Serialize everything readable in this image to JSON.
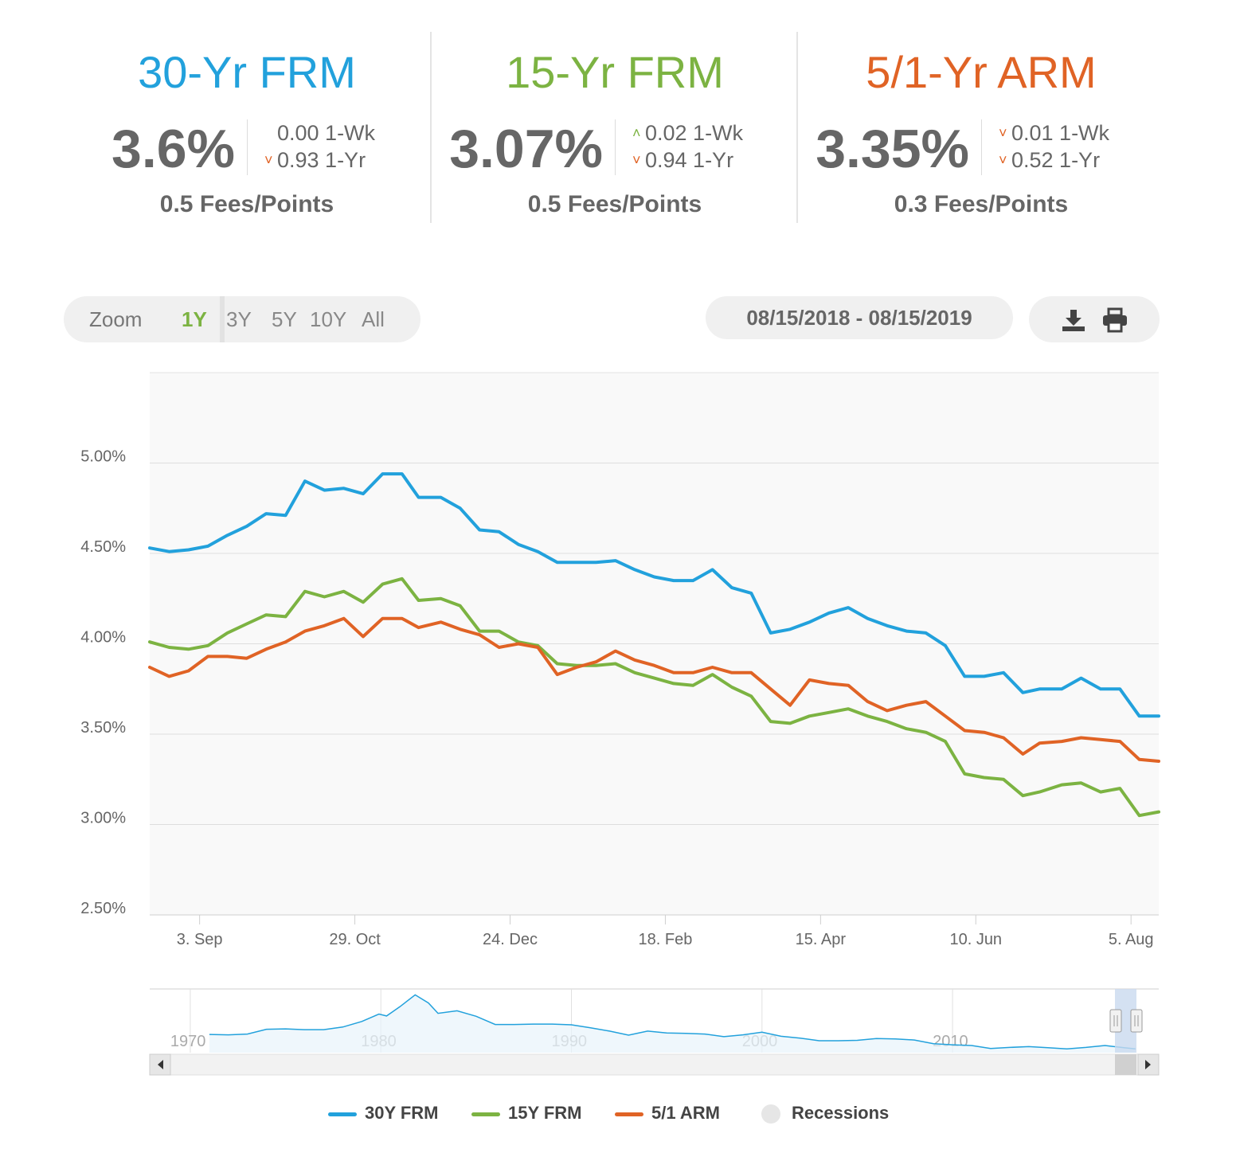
{
  "rates": [
    {
      "title": "30-Yr FRM",
      "color": "#22a1dc",
      "rate": "3.6%",
      "wk_dir": "none",
      "wk": "0.00 1-Wk",
      "yr_dir": "down",
      "yr": "0.93 1-Yr",
      "fees": "0.5 Fees/Points"
    },
    {
      "title": "15-Yr FRM",
      "color": "#7cb342",
      "rate": "3.07%",
      "wk_dir": "up",
      "wk": "0.02 1-Wk",
      "yr_dir": "down",
      "yr": "0.94 1-Yr",
      "fees": "0.5 Fees/Points"
    },
    {
      "title": "5/1-Yr ARM",
      "color": "#e06325",
      "rate": "3.35%",
      "wk_dir": "down",
      "wk": "0.01 1-Wk",
      "yr_dir": "down",
      "yr": "0.52 1-Yr",
      "fees": "0.3 Fees/Points"
    }
  ],
  "toolbar": {
    "zoom_label": "Zoom",
    "zoom_options": [
      "1Y",
      "3Y",
      "5Y",
      "10Y",
      "All"
    ],
    "zoom_selected": "1Y",
    "date_range": "08/15/2018 - 08/15/2019",
    "download_icon": "download-icon",
    "print_icon": "print-icon"
  },
  "chart_data": {
    "type": "line",
    "title": "",
    "xlabel": "",
    "ylabel": "",
    "x_start": "2018-08-16",
    "x_end": "2019-08-15",
    "x_ticks": [
      {
        "date": "2018-09-03",
        "label": "3. Sep"
      },
      {
        "date": "2018-10-29",
        "label": "29. Oct"
      },
      {
        "date": "2018-12-24",
        "label": "24. Dec"
      },
      {
        "date": "2019-02-18",
        "label": "18. Feb"
      },
      {
        "date": "2019-04-15",
        "label": "15. Apr"
      },
      {
        "date": "2019-06-10",
        "label": "10. Jun"
      },
      {
        "date": "2019-08-05",
        "label": "5. Aug"
      }
    ],
    "y_ticks": [
      {
        "value": 2.5,
        "label": "2.50%"
      },
      {
        "value": 3.0,
        "label": "3.00%"
      },
      {
        "value": 3.5,
        "label": "3.50%"
      },
      {
        "value": 4.0,
        "label": "4.00%"
      },
      {
        "value": 4.5,
        "label": "4.50%"
      },
      {
        "value": 5.0,
        "label": "5.00%"
      }
    ],
    "ylim": [
      2.5,
      5.5
    ],
    "grid": true,
    "x": [
      "2018-08-16",
      "2018-08-23",
      "2018-08-30",
      "2018-09-06",
      "2018-09-13",
      "2018-09-20",
      "2018-09-27",
      "2018-10-04",
      "2018-10-11",
      "2018-10-18",
      "2018-10-25",
      "2018-11-01",
      "2018-11-08",
      "2018-11-15",
      "2018-11-21",
      "2018-11-29",
      "2018-12-06",
      "2018-12-13",
      "2018-12-20",
      "2018-12-27",
      "2019-01-03",
      "2019-01-10",
      "2019-01-17",
      "2019-01-24",
      "2019-01-31",
      "2019-02-07",
      "2019-02-14",
      "2019-02-21",
      "2019-02-28",
      "2019-03-07",
      "2019-03-14",
      "2019-03-21",
      "2019-03-28",
      "2019-04-04",
      "2019-04-11",
      "2019-04-18",
      "2019-04-25",
      "2019-05-02",
      "2019-05-09",
      "2019-05-16",
      "2019-05-23",
      "2019-05-30",
      "2019-06-06",
      "2019-06-13",
      "2019-06-20",
      "2019-06-27",
      "2019-07-03",
      "2019-07-11",
      "2019-07-18",
      "2019-07-25",
      "2019-08-01",
      "2019-08-08",
      "2019-08-15"
    ],
    "series": [
      {
        "name": "30Y FRM",
        "color": "#22a1dc",
        "values": [
          4.53,
          4.51,
          4.52,
          4.54,
          4.6,
          4.65,
          4.72,
          4.71,
          4.9,
          4.85,
          4.86,
          4.83,
          4.94,
          4.94,
          4.81,
          4.81,
          4.75,
          4.63,
          4.62,
          4.55,
          4.51,
          4.45,
          4.45,
          4.45,
          4.46,
          4.41,
          4.37,
          4.35,
          4.35,
          4.41,
          4.31,
          4.28,
          4.06,
          4.08,
          4.12,
          4.17,
          4.2,
          4.14,
          4.1,
          4.07,
          4.06,
          3.99,
          3.82,
          3.82,
          3.84,
          3.73,
          3.75,
          3.75,
          3.81,
          3.75,
          3.75,
          3.6,
          3.6
        ]
      },
      {
        "name": "15Y FRM",
        "color": "#7cb342",
        "values": [
          4.01,
          3.98,
          3.97,
          3.99,
          4.06,
          4.11,
          4.16,
          4.15,
          4.29,
          4.26,
          4.29,
          4.23,
          4.33,
          4.36,
          4.24,
          4.25,
          4.21,
          4.07,
          4.07,
          4.01,
          3.99,
          3.89,
          3.88,
          3.88,
          3.89,
          3.84,
          3.81,
          3.78,
          3.77,
          3.83,
          3.76,
          3.71,
          3.57,
          3.56,
          3.6,
          3.62,
          3.64,
          3.6,
          3.57,
          3.53,
          3.51,
          3.46,
          3.28,
          3.26,
          3.25,
          3.16,
          3.18,
          3.22,
          3.23,
          3.18,
          3.2,
          3.05,
          3.07
        ]
      },
      {
        "name": "5/1 ARM",
        "color": "#e06325",
        "values": [
          3.87,
          3.82,
          3.85,
          3.93,
          3.93,
          3.92,
          3.97,
          4.01,
          4.07,
          4.1,
          4.14,
          4.04,
          4.14,
          4.14,
          4.09,
          4.12,
          4.08,
          4.05,
          3.98,
          4.0,
          3.98,
          3.83,
          3.87,
          3.9,
          3.96,
          3.91,
          3.88,
          3.84,
          3.84,
          3.87,
          3.84,
          3.84,
          3.75,
          3.66,
          3.8,
          3.78,
          3.77,
          3.68,
          3.63,
          3.66,
          3.68,
          3.6,
          3.52,
          3.51,
          3.48,
          3.39,
          3.45,
          3.46,
          3.48,
          3.47,
          3.46,
          3.36,
          3.35
        ]
      }
    ]
  },
  "navigator": {
    "year_labels": [
      "1970",
      "1980",
      "1990",
      "2000",
      "2010"
    ],
    "start_year": 1969,
    "end_year": 2019.65,
    "ymax": 18.5,
    "points": [
      [
        1971,
        7.5
      ],
      [
        1972,
        7.4
      ],
      [
        1973,
        7.6
      ],
      [
        1974,
        8.9
      ],
      [
        1975,
        9.0
      ],
      [
        1976,
        8.8
      ],
      [
        1977,
        8.8
      ],
      [
        1978,
        9.5
      ],
      [
        1979,
        11.0
      ],
      [
        1979.9,
        13.0
      ],
      [
        1980.3,
        12.5
      ],
      [
        1981,
        15.0
      ],
      [
        1981.8,
        18.2
      ],
      [
        1982.5,
        16.0
      ],
      [
        1983,
        13.2
      ],
      [
        1984,
        13.9
      ],
      [
        1985,
        12.4
      ],
      [
        1986,
        10.2
      ],
      [
        1987,
        10.2
      ],
      [
        1988,
        10.3
      ],
      [
        1989,
        10.3
      ],
      [
        1990,
        10.1
      ],
      [
        1991,
        9.3
      ],
      [
        1992,
        8.4
      ],
      [
        1993,
        7.3
      ],
      [
        1994,
        8.4
      ],
      [
        1995,
        7.9
      ],
      [
        1996,
        7.8
      ],
      [
        1997,
        7.6
      ],
      [
        1998,
        6.9
      ],
      [
        1999,
        7.4
      ],
      [
        2000,
        8.1
      ],
      [
        2001,
        7.0
      ],
      [
        2002,
        6.5
      ],
      [
        2003,
        5.8
      ],
      [
        2004,
        5.8
      ],
      [
        2005,
        5.9
      ],
      [
        2006,
        6.4
      ],
      [
        2007,
        6.3
      ],
      [
        2008,
        6.0
      ],
      [
        2009,
        5.0
      ],
      [
        2010,
        4.7
      ],
      [
        2011,
        4.5
      ],
      [
        2012,
        3.7
      ],
      [
        2013,
        4.0
      ],
      [
        2014,
        4.2
      ],
      [
        2015,
        3.9
      ],
      [
        2016,
        3.6
      ],
      [
        2017,
        4.0
      ],
      [
        2018,
        4.5
      ],
      [
        2019,
        3.9
      ],
      [
        2019.6,
        3.6
      ]
    ]
  },
  "legend": [
    {
      "label": "30Y FRM",
      "color": "#22a1dc"
    },
    {
      "label": "15Y FRM",
      "color": "#7cb342"
    },
    {
      "label": "5/1 ARM",
      "color": "#e06325"
    },
    {
      "label": "Recessions",
      "color": "#e6e6e6"
    }
  ]
}
